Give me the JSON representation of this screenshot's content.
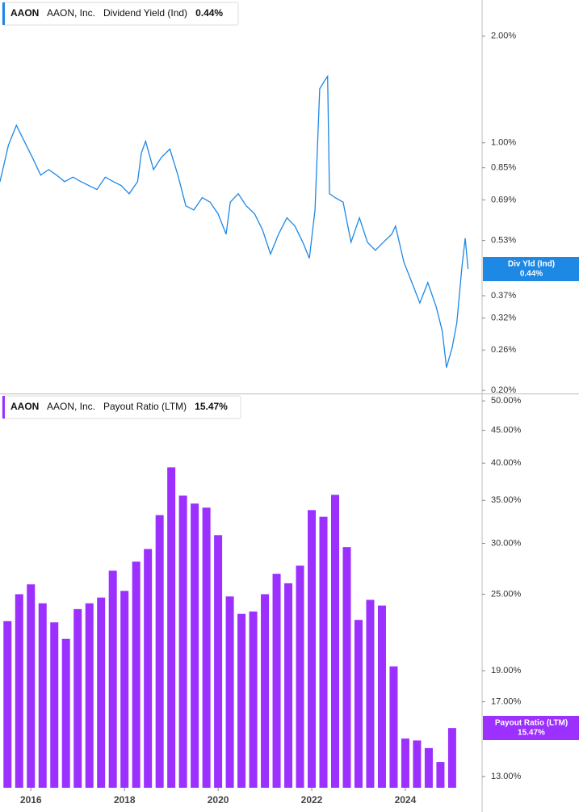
{
  "chart_data": [
    {
      "type": "line",
      "log_scale": true,
      "ticker": "AAON",
      "company": "AAON, Inc.",
      "x": [
        2015.34,
        2015.52,
        2015.69,
        2015.86,
        2016.03,
        2016.21,
        2016.38,
        2016.55,
        2016.72,
        2016.9,
        2017.07,
        2017.24,
        2017.41,
        2017.59,
        2017.76,
        2017.93,
        2018.1,
        2018.28,
        2018.36,
        2018.45,
        2018.62,
        2018.79,
        2018.97,
        2019.14,
        2019.31,
        2019.48,
        2019.66,
        2019.83,
        2020.0,
        2020.17,
        2020.26,
        2020.43,
        2020.6,
        2020.78,
        2020.95,
        2021.12,
        2021.29,
        2021.47,
        2021.64,
        2021.81,
        2021.95,
        2022.07,
        2022.17,
        2022.28,
        2022.34,
        2022.38,
        2022.5,
        2022.67,
        2022.84,
        2023.02,
        2023.19,
        2023.36,
        2023.53,
        2023.71,
        2023.79,
        2023.97,
        2024.14,
        2024.31,
        2024.48,
        2024.66,
        2024.79,
        2024.88,
        2025.0,
        2025.1,
        2025.21,
        2025.28,
        2025.34
      ],
      "series": [
        {
          "name": "Dividend Yield (Ind)",
          "color": "#1e88e5",
          "values": [
            0.777,
            0.984,
            1.12,
            1.01,
            0.91,
            0.81,
            0.84,
            0.81,
            0.777,
            0.8,
            0.777,
            0.757,
            0.738,
            0.8,
            0.777,
            0.757,
            0.718,
            0.777,
            0.934,
            1.01,
            0.84,
            0.91,
            0.96,
            0.81,
            0.664,
            0.646,
            0.7,
            0.68,
            0.63,
            0.552,
            0.68,
            0.718,
            0.664,
            0.63,
            0.567,
            0.485,
            0.552,
            0.614,
            0.582,
            0.524,
            0.472,
            0.646,
            1.42,
            1.5,
            1.54,
            0.718,
            0.7,
            0.68,
            0.524,
            0.614,
            0.524,
            0.497,
            0.524,
            0.552,
            0.582,
            0.46,
            0.403,
            0.353,
            0.403,
            0.344,
            0.294,
            0.232,
            0.264,
            0.31,
            0.448,
            0.538,
            0.44
          ]
        }
      ],
      "last_value_label": "0.44%",
      "badge_label": "Div Yld (Ind)",
      "xlim": [
        2015.34,
        2025.64
      ],
      "ylim": [
        0.196,
        2.53
      ],
      "yticks": [
        {
          "value": 2,
          "label": "2.00%"
        },
        {
          "value": 1,
          "label": "1.00%"
        },
        {
          "value": 0.85,
          "label": "0.85%"
        },
        {
          "value": 0.69,
          "label": "0.69%"
        },
        {
          "value": 0.53,
          "label": "0.53%"
        },
        {
          "value": 0.37,
          "label": "0.37%"
        },
        {
          "value": 0.32,
          "label": "0.32%"
        },
        {
          "value": 0.26,
          "label": "0.26%"
        },
        {
          "value": 0.2,
          "label": "0.20%"
        }
      ]
    },
    {
      "type": "bar",
      "log_scale": true,
      "ticker": "AAON",
      "company": "AAON, Inc.",
      "x": [
        2015.5,
        2015.75,
        2016.0,
        2016.25,
        2016.5,
        2016.75,
        2017.0,
        2017.25,
        2017.5,
        2017.75,
        2018.0,
        2018.25,
        2018.5,
        2018.75,
        2019.0,
        2019.25,
        2019.5,
        2019.75,
        2020.0,
        2020.25,
        2020.5,
        2020.75,
        2021.0,
        2021.25,
        2021.5,
        2021.75,
        2022.0,
        2022.25,
        2022.5,
        2022.75,
        2023.0,
        2023.25,
        2023.5,
        2023.75,
        2024.0,
        2024.25,
        2024.5,
        2024.75,
        2025.0
      ],
      "series": [
        {
          "name": "Payout Ratio (LTM)",
          "color": "#9b30ff",
          "values": [
            22.7,
            25.0,
            25.9,
            24.2,
            22.6,
            21.3,
            23.7,
            24.2,
            24.7,
            27.2,
            25.3,
            28.1,
            29.4,
            33.2,
            39.4,
            35.6,
            34.6,
            34.1,
            30.9,
            24.8,
            23.3,
            23.5,
            25.0,
            26.9,
            26.0,
            27.7,
            33.8,
            33.0,
            35.7,
            29.6,
            22.8,
            24.5,
            24.0,
            19.3,
            14.9,
            14.8,
            14.4,
            13.7,
            15.47
          ]
        }
      ],
      "last_value_label": "15.47%",
      "badge_label": "Payout Ratio (LTM)",
      "xlim": [
        2015.34,
        2025.64
      ],
      "ylim": [
        12.49,
        51.2
      ],
      "xticks": [
        2016,
        2018,
        2020,
        2022,
        2024
      ],
      "yticks": [
        {
          "value": 50,
          "label": "50.00%"
        },
        {
          "value": 45,
          "label": "45.00%"
        },
        {
          "value": 40,
          "label": "40.00%"
        },
        {
          "value": 35,
          "label": "35.00%"
        },
        {
          "value": 30,
          "label": "30.00%"
        },
        {
          "value": 25,
          "label": "25.00%"
        },
        {
          "value": 19,
          "label": "19.00%"
        },
        {
          "value": 17,
          "label": "17.00%"
        },
        {
          "value": 13,
          "label": "13.00%"
        }
      ]
    }
  ]
}
